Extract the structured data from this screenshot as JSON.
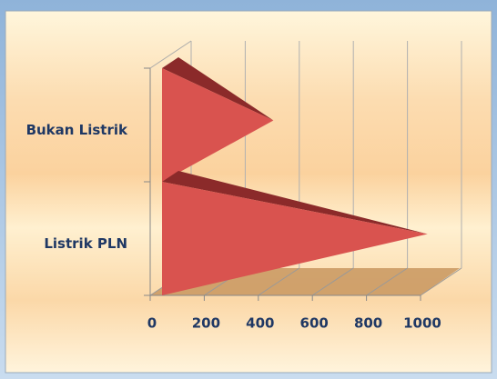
{
  "chart_data": {
    "type": "bar3d",
    "orientation": "horizontal",
    "categories": [
      "Bukan Listrik",
      "Listrik PLN"
    ],
    "values": [
      380,
      950
    ],
    "color": "#d9534f",
    "xlim": [
      0,
      1000
    ],
    "xticks": [
      0,
      200,
      400,
      600,
      800,
      1000
    ],
    "grid": true
  }
}
